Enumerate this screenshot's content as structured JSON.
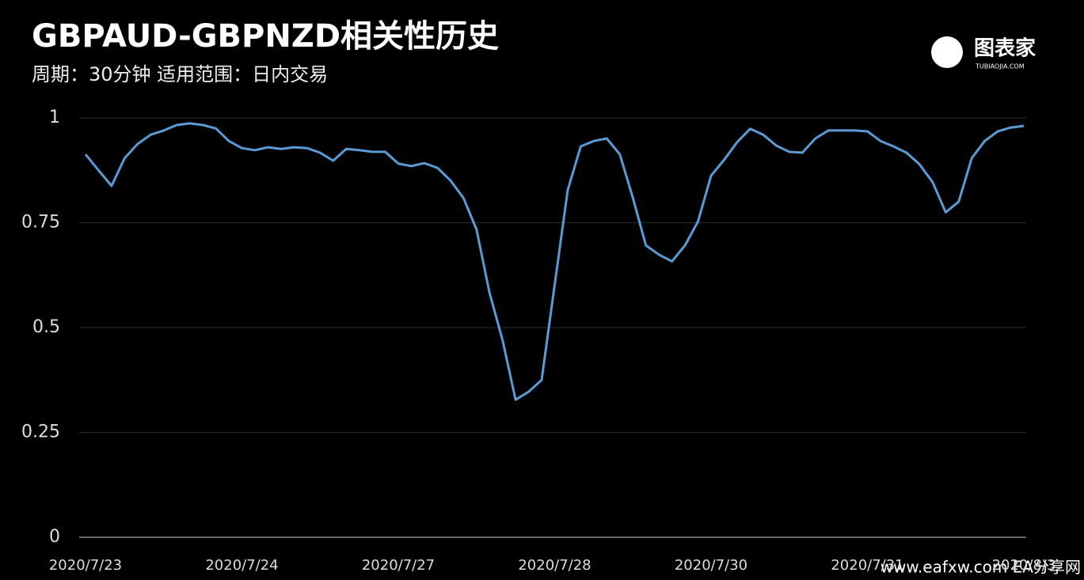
{
  "chart_data": {
    "type": "line",
    "title": "GBPAUD-GBPNZD相关性历史",
    "subtitle": "周期：30分钟  适用范围：日内交易",
    "logo": "图表家",
    "logo_sub": "TUBIAOJIA.COM",
    "watermark": "www.eafxw.com  EA分享网",
    "categories": [
      "2020/7/23",
      null,
      null,
      null,
      null,
      null,
      null,
      null,
      null,
      null,
      null,
      null,
      "2020/7/24",
      null,
      null,
      null,
      null,
      null,
      null,
      null,
      null,
      null,
      null,
      null,
      "2020/7/27",
      null,
      null,
      null,
      null,
      null,
      null,
      null,
      null,
      null,
      null,
      null,
      "2020/7/28",
      null,
      null,
      null,
      null,
      null,
      null,
      null,
      null,
      null,
      null,
      null,
      "2020/7/30",
      null,
      null,
      null,
      null,
      null,
      null,
      null,
      null,
      null,
      null,
      null,
      "2020/7/31",
      null,
      null,
      null,
      null,
      null,
      null,
      null,
      null,
      null,
      null,
      null,
      "2020/8/3"
    ],
    "series": [
      {
        "name": "GBPAUD-GBPNZD",
        "color": "#5b9bd5",
        "values": [
          0.913,
          0.875,
          0.838,
          0.904,
          0.938,
          0.96,
          0.97,
          0.983,
          0.987,
          0.983,
          0.975,
          0.945,
          0.928,
          0.923,
          0.93,
          0.926,
          0.93,
          0.928,
          0.917,
          0.898,
          0.926,
          0.923,
          0.919,
          0.919,
          0.891,
          0.885,
          0.892,
          0.881,
          0.851,
          0.809,
          0.734,
          0.583,
          0.47,
          0.328,
          0.347,
          0.375,
          0.602,
          0.828,
          0.932,
          0.945,
          0.951,
          0.913,
          0.809,
          0.696,
          0.674,
          0.658,
          0.696,
          0.753,
          0.862,
          0.9,
          0.942,
          0.974,
          0.96,
          0.934,
          0.919,
          0.917,
          0.951,
          0.97,
          0.97,
          0.97,
          0.968,
          0.945,
          0.932,
          0.917,
          0.889,
          0.847,
          0.775,
          0.8,
          0.904,
          0.945,
          0.968,
          0.977,
          0.981
        ]
      }
    ],
    "ylim": [
      0,
      1
    ],
    "yticks": [
      0,
      0.25,
      0.5,
      0.75,
      1
    ],
    "grid": true
  }
}
